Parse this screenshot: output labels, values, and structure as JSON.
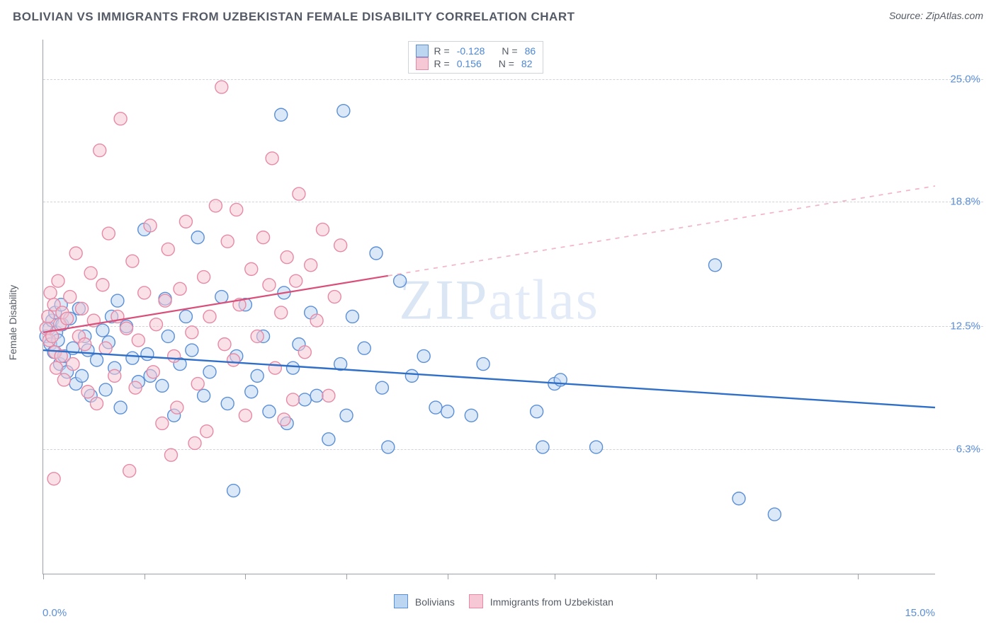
{
  "header": {
    "title": "BOLIVIAN VS IMMIGRANTS FROM UZBEKISTAN FEMALE DISABILITY CORRELATION CHART",
    "source_prefix": "Source: ",
    "source_name": "ZipAtlas.com"
  },
  "watermark": {
    "text_bold": "ZIP",
    "text_light": "atlas"
  },
  "chart": {
    "type": "scatter",
    "background_color": "#ffffff",
    "grid_color": "#cfd3da",
    "axis_color": "#9aa0aa",
    "label_color": "#555b66",
    "tick_label_color": "#5b8fd6",
    "label_fontsize": 14,
    "tick_fontsize": 15,
    "title_fontsize": 17,
    "ylabel": "Female Disability",
    "x_range": [
      0.0,
      15.0
    ],
    "y_range": [
      0.0,
      27.0
    ],
    "x_tick_positions": [
      0.0,
      1.7,
      3.4,
      5.1,
      6.8,
      8.6,
      10.3,
      12.0,
      13.7
    ],
    "x_axis_labels": {
      "left": "0.0%",
      "right": "15.0%"
    },
    "y_gridlines": [
      {
        "value": 6.3,
        "label": "6.3%"
      },
      {
        "value": 12.5,
        "label": "12.5%"
      },
      {
        "value": 18.8,
        "label": "18.8%"
      },
      {
        "value": 25.0,
        "label": "25.0%"
      }
    ],
    "series": [
      {
        "name": "Bolivians",
        "marker_fill": "#bcd6f2",
        "marker_stroke": "#5b8fd6",
        "marker_radius": 9,
        "marker_fill_opacity": 0.55,
        "trend_line_color": "#2f6fc7",
        "trend_line_width": 2.4,
        "trend_dash_color": "#9cbce8",
        "R": "-0.128",
        "N": "86",
        "trend": {
          "x1": 0.0,
          "y1": 11.3,
          "x2": 15.0,
          "y2": 8.4,
          "solid_until_x": 15.0
        },
        "points": [
          [
            0.05,
            12.0
          ],
          [
            0.1,
            12.4
          ],
          [
            0.12,
            11.6
          ],
          [
            0.15,
            12.8
          ],
          [
            0.18,
            11.2
          ],
          [
            0.2,
            13.2
          ],
          [
            0.22,
            12.2
          ],
          [
            0.25,
            11.8
          ],
          [
            0.28,
            10.6
          ],
          [
            0.3,
            13.6
          ],
          [
            0.32,
            12.6
          ],
          [
            0.35,
            11.0
          ],
          [
            0.4,
            10.2
          ],
          [
            0.45,
            12.9
          ],
          [
            0.5,
            11.4
          ],
          [
            0.55,
            9.6
          ],
          [
            0.6,
            13.4
          ],
          [
            0.65,
            10.0
          ],
          [
            0.7,
            12.0
          ],
          [
            0.75,
            11.3
          ],
          [
            0.8,
            9.0
          ],
          [
            0.9,
            10.8
          ],
          [
            1.0,
            12.3
          ],
          [
            1.05,
            9.3
          ],
          [
            1.1,
            11.7
          ],
          [
            1.2,
            10.4
          ],
          [
            1.25,
            13.8
          ],
          [
            1.3,
            8.4
          ],
          [
            1.4,
            12.5
          ],
          [
            1.5,
            10.9
          ],
          [
            1.6,
            9.7
          ],
          [
            1.7,
            17.4
          ],
          [
            1.75,
            11.1
          ],
          [
            1.8,
            10.0
          ],
          [
            2.0,
            9.5
          ],
          [
            2.1,
            12.0
          ],
          [
            2.2,
            8.0
          ],
          [
            2.3,
            10.6
          ],
          [
            2.4,
            13.0
          ],
          [
            2.5,
            11.3
          ],
          [
            2.6,
            17.0
          ],
          [
            2.7,
            9.0
          ],
          [
            2.8,
            10.2
          ],
          [
            3.0,
            14.0
          ],
          [
            3.1,
            8.6
          ],
          [
            3.2,
            4.2
          ],
          [
            3.25,
            11.0
          ],
          [
            3.4,
            13.6
          ],
          [
            3.5,
            9.2
          ],
          [
            3.6,
            10.0
          ],
          [
            3.8,
            8.2
          ],
          [
            4.0,
            23.2
          ],
          [
            4.05,
            14.2
          ],
          [
            4.1,
            7.6
          ],
          [
            4.2,
            10.4
          ],
          [
            4.4,
            8.8
          ],
          [
            4.5,
            13.2
          ],
          [
            4.6,
            9.0
          ],
          [
            4.8,
            6.8
          ],
          [
            5.0,
            10.6
          ],
          [
            5.05,
            23.4
          ],
          [
            5.1,
            8.0
          ],
          [
            5.4,
            11.4
          ],
          [
            5.6,
            16.2
          ],
          [
            5.7,
            9.4
          ],
          [
            5.8,
            6.4
          ],
          [
            6.0,
            14.8
          ],
          [
            6.2,
            10.0
          ],
          [
            6.6,
            8.4
          ],
          [
            6.8,
            8.2
          ],
          [
            7.2,
            8.0
          ],
          [
            7.4,
            10.6
          ],
          [
            8.3,
            8.2
          ],
          [
            8.4,
            6.4
          ],
          [
            8.6,
            9.6
          ],
          [
            8.7,
            9.8
          ],
          [
            9.3,
            6.4
          ],
          [
            11.3,
            15.6
          ],
          [
            11.7,
            3.8
          ],
          [
            12.3,
            3.0
          ],
          [
            6.4,
            11.0
          ],
          [
            5.2,
            13.0
          ],
          [
            3.7,
            12.0
          ],
          [
            4.3,
            11.6
          ],
          [
            2.05,
            13.9
          ],
          [
            1.15,
            13.0
          ]
        ]
      },
      {
        "name": "Immigrants from Uzbekistan",
        "marker_fill": "#f6c7d4",
        "marker_stroke": "#e68aa6",
        "marker_radius": 9,
        "marker_fill_opacity": 0.55,
        "trend_line_color": "#d94f7a",
        "trend_line_width": 2.2,
        "trend_dash_color": "#f1b6c8",
        "R": "0.156",
        "N": "82",
        "trend": {
          "x1": 0.0,
          "y1": 12.2,
          "x2": 15.0,
          "y2": 19.6,
          "solid_until_x": 5.8
        },
        "points": [
          [
            0.05,
            12.4
          ],
          [
            0.08,
            13.0
          ],
          [
            0.1,
            11.8
          ],
          [
            0.12,
            14.2
          ],
          [
            0.15,
            12.0
          ],
          [
            0.18,
            13.6
          ],
          [
            0.2,
            11.2
          ],
          [
            0.22,
            10.4
          ],
          [
            0.25,
            14.8
          ],
          [
            0.28,
            12.6
          ],
          [
            0.3,
            11.0
          ],
          [
            0.32,
            13.2
          ],
          [
            0.35,
            9.8
          ],
          [
            0.4,
            12.9
          ],
          [
            0.45,
            14.0
          ],
          [
            0.5,
            10.6
          ],
          [
            0.55,
            16.2
          ],
          [
            0.6,
            12.0
          ],
          [
            0.65,
            13.4
          ],
          [
            0.7,
            11.6
          ],
          [
            0.75,
            9.2
          ],
          [
            0.8,
            15.2
          ],
          [
            0.85,
            12.8
          ],
          [
            0.9,
            8.6
          ],
          [
            0.95,
            21.4
          ],
          [
            1.0,
            14.6
          ],
          [
            1.05,
            11.4
          ],
          [
            1.1,
            17.2
          ],
          [
            1.2,
            10.0
          ],
          [
            1.25,
            13.0
          ],
          [
            1.3,
            23.0
          ],
          [
            1.4,
            12.4
          ],
          [
            1.5,
            15.8
          ],
          [
            1.55,
            9.4
          ],
          [
            1.6,
            11.8
          ],
          [
            1.7,
            14.2
          ],
          [
            1.8,
            17.6
          ],
          [
            1.85,
            10.2
          ],
          [
            1.9,
            12.6
          ],
          [
            2.0,
            7.6
          ],
          [
            2.05,
            13.8
          ],
          [
            2.1,
            16.4
          ],
          [
            2.2,
            11.0
          ],
          [
            2.25,
            8.4
          ],
          [
            2.3,
            14.4
          ],
          [
            2.4,
            17.8
          ],
          [
            2.5,
            12.2
          ],
          [
            2.6,
            9.6
          ],
          [
            2.7,
            15.0
          ],
          [
            2.75,
            7.2
          ],
          [
            2.8,
            13.0
          ],
          [
            2.9,
            18.6
          ],
          [
            3.0,
            24.6
          ],
          [
            3.05,
            11.6
          ],
          [
            3.1,
            16.8
          ],
          [
            3.2,
            10.8
          ],
          [
            3.25,
            18.4
          ],
          [
            3.3,
            13.6
          ],
          [
            3.4,
            8.0
          ],
          [
            3.5,
            15.4
          ],
          [
            3.6,
            12.0
          ],
          [
            3.7,
            17.0
          ],
          [
            3.8,
            14.6
          ],
          [
            3.85,
            21.0
          ],
          [
            3.9,
            10.4
          ],
          [
            4.0,
            13.2
          ],
          [
            4.1,
            16.0
          ],
          [
            4.2,
            8.8
          ],
          [
            4.25,
            14.8
          ],
          [
            4.3,
            19.2
          ],
          [
            4.4,
            11.2
          ],
          [
            4.5,
            15.6
          ],
          [
            4.6,
            12.8
          ],
          [
            4.7,
            17.4
          ],
          [
            4.8,
            9.0
          ],
          [
            4.9,
            14.0
          ],
          [
            5.0,
            16.6
          ],
          [
            0.18,
            4.8
          ],
          [
            1.45,
            5.2
          ],
          [
            2.15,
            6.0
          ],
          [
            2.55,
            6.6
          ],
          [
            4.05,
            7.8
          ]
        ]
      }
    ],
    "bottom_legend": [
      {
        "label": "Bolivians",
        "fill": "#bcd6f2",
        "stroke": "#5b8fd6"
      },
      {
        "label": "Immigrants from Uzbekistan",
        "fill": "#f6c7d4",
        "stroke": "#e68aa6"
      }
    ],
    "top_legend": {
      "rows": [
        {
          "fill": "#bcd6f2",
          "stroke": "#5b8fd6",
          "r_label": "R =",
          "r_val": "-0.128",
          "n_label": "N =",
          "n_val": "86"
        },
        {
          "fill": "#f6c7d4",
          "stroke": "#e68aa6",
          "r_label": "R =",
          "r_val": "0.156",
          "n_label": "N =",
          "n_val": "82"
        }
      ]
    }
  }
}
